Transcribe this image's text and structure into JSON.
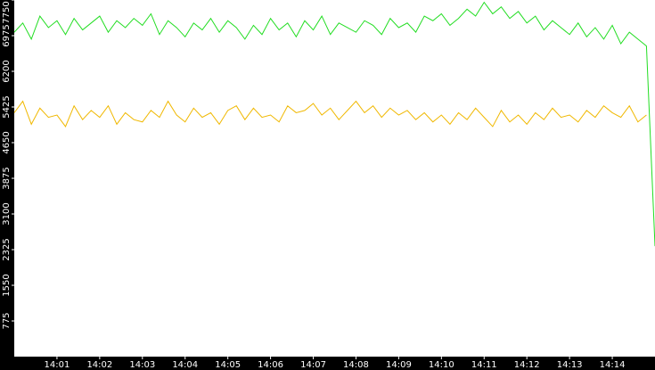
{
  "chart_data": {
    "type": "line",
    "x": [
      0,
      0.2,
      0.4,
      0.6,
      0.8,
      1,
      1.2,
      1.4,
      1.6,
      1.8,
      2,
      2.2,
      2.4,
      2.6,
      2.8,
      3,
      3.2,
      3.4,
      3.6,
      3.8,
      4,
      4.2,
      4.4,
      4.6,
      4.8,
      5,
      5.2,
      5.4,
      5.6,
      5.8,
      6,
      6.2,
      6.4,
      6.6,
      6.8,
      7,
      7.2,
      7.4,
      7.6,
      7.8,
      8,
      8.2,
      8.4,
      8.6,
      8.8,
      9,
      9.2,
      9.4,
      9.6,
      9.8,
      10,
      10.2,
      10.4,
      10.6,
      10.8,
      11,
      11.2,
      11.4,
      11.6,
      11.8,
      12,
      12.2,
      12.4,
      12.6,
      12.8,
      13,
      13.2,
      13.4,
      13.6,
      13.8,
      14,
      14.2,
      14.4,
      14.6,
      14.8,
      15
    ],
    "series": [
      {
        "color": "#22dd22",
        "values": [
          7050,
          7250,
          6900,
          7400,
          7150,
          7300,
          7000,
          7350,
          7100,
          7250,
          7400,
          7050,
          7300,
          7150,
          7350,
          7200,
          7450,
          7000,
          7300,
          7150,
          6950,
          7250,
          7100,
          7350,
          7050,
          7300,
          7150,
          6900,
          7200,
          7000,
          7350,
          7100,
          7250,
          6950,
          7300,
          7100,
          7400,
          7000,
          7250,
          7150,
          7050,
          7300,
          7200,
          7000,
          7350,
          7150,
          7250,
          7050,
          7400,
          7300,
          7450,
          7200,
          7350,
          7550,
          7400,
          7700,
          7450,
          7600,
          7350,
          7500,
          7250,
          7400,
          7100,
          7300,
          7150,
          7000,
          7250,
          6950,
          7150,
          6900,
          7200,
          6800,
          7050,
          6900,
          6750,
          2400
        ]
      },
      {
        "color": "#f0b800",
        "values": [
          5300,
          5550,
          5050,
          5400,
          5200,
          5250,
          5000,
          5450,
          5150,
          5350,
          5200,
          5450,
          5050,
          5300,
          5150,
          5100,
          5350,
          5200,
          5550,
          5250,
          5100,
          5400,
          5200,
          5300,
          5050,
          5350,
          5450,
          5150,
          5400,
          5200,
          5250,
          5100,
          5450,
          5300,
          5350,
          5500,
          5250,
          5400,
          5150,
          5350,
          5550,
          5300,
          5450,
          5200,
          5400,
          5250,
          5350,
          5150,
          5300,
          5100,
          5250,
          5050,
          5300,
          5150,
          5400,
          5200,
          5000,
          5350,
          5100,
          5250,
          5050,
          5300,
          5150,
          5400,
          5200,
          5250,
          5100,
          5350,
          5200,
          5450,
          5300,
          5200,
          5450,
          5100,
          5250,
          null
        ]
      }
    ],
    "xlim": [
      0,
      15
    ],
    "xticks": [
      {
        "value": 1,
        "label": "14:01"
      },
      {
        "value": 2,
        "label": "14:02"
      },
      {
        "value": 3,
        "label": "14:03"
      },
      {
        "value": 4,
        "label": "14:04"
      },
      {
        "value": 5,
        "label": "14:05"
      },
      {
        "value": 6,
        "label": "14:06"
      },
      {
        "value": 7,
        "label": "14:07"
      },
      {
        "value": 8,
        "label": "14:08"
      },
      {
        "value": 9,
        "label": "14:09"
      },
      {
        "value": 10,
        "label": "14:10"
      },
      {
        "value": 11,
        "label": "14:11"
      },
      {
        "value": 12,
        "label": "14:12"
      },
      {
        "value": 13,
        "label": "14:13"
      },
      {
        "value": 14,
        "label": "14:14"
      }
    ],
    "ylim": [
      0,
      7750
    ],
    "yticks": [
      775,
      1550,
      2325,
      3100,
      3875,
      4650,
      5425,
      6200,
      6975,
      7750
    ]
  }
}
